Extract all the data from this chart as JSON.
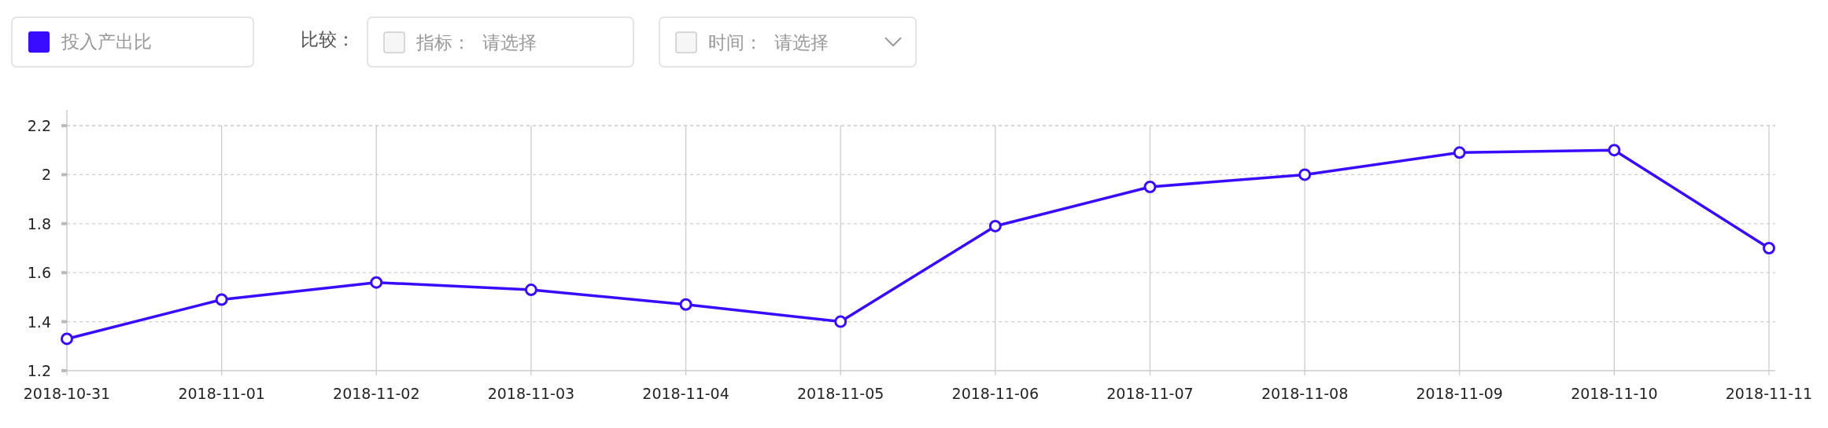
{
  "chart_data": {
    "type": "line",
    "categories": [
      "2018-10-31",
      "2018-11-01",
      "2018-11-02",
      "2018-11-03",
      "2018-11-04",
      "2018-11-05",
      "2018-11-06",
      "2018-11-07",
      "2018-11-08",
      "2018-11-09",
      "2018-11-10",
      "2018-11-11"
    ],
    "series": [
      {
        "name": "投入产出比",
        "color": "#3a0cff",
        "values": [
          1.33,
          1.49,
          1.56,
          1.53,
          1.47,
          1.4,
          1.79,
          1.95,
          2.0,
          2.09,
          2.1,
          1.7
        ]
      }
    ],
    "ylim": [
      1.2,
      2.2
    ],
    "yticks": [
      1.2,
      1.4,
      1.6,
      1.8,
      2,
      2.2
    ],
    "grid": true,
    "legend": "top left",
    "marker": "circle",
    "line_style": "solid",
    "annotations": [
      "比较：",
      "指标：  请选择",
      "时间：  请选择"
    ]
  }
}
